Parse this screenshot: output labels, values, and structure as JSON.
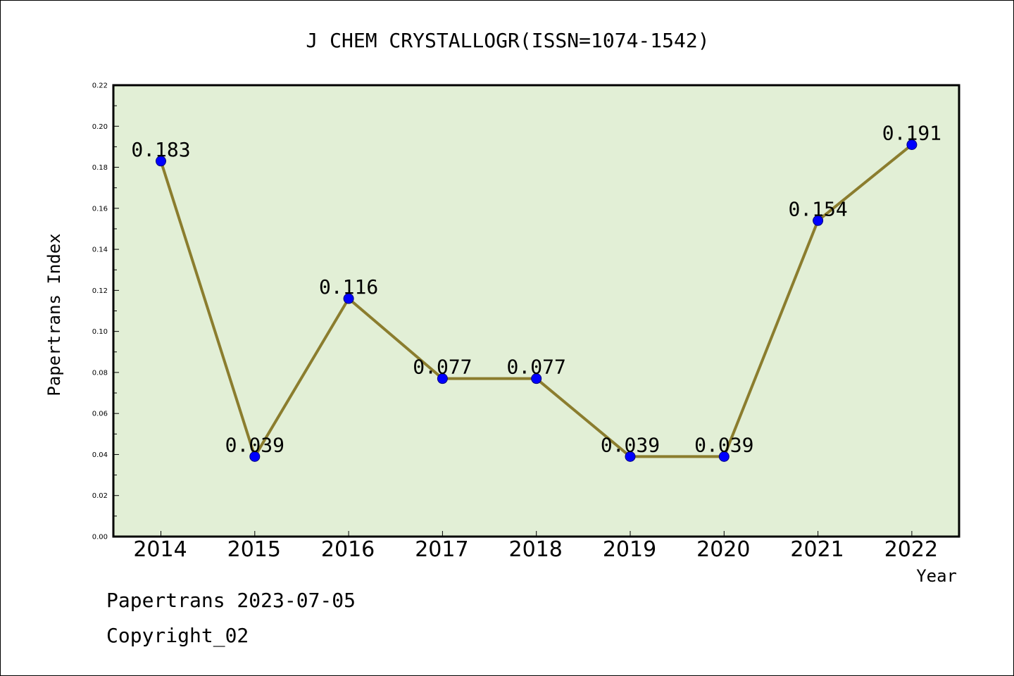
{
  "footer": {
    "line1": "Papertrans 2023-07-05",
    "line2": "Copyright_02"
  },
  "chart_data": {
    "type": "line",
    "title": "J CHEM CRYSTALLOGR(ISSN=1074-1542)",
    "xlabel": "Year",
    "ylabel": "Papertrans Index",
    "categories": [
      "2014",
      "2015",
      "2016",
      "2017",
      "2018",
      "2019",
      "2020",
      "2021",
      "2022"
    ],
    "series": [
      {
        "values": [
          0.183,
          0.039,
          0.116,
          0.077,
          0.077,
          0.039,
          0.039,
          0.154,
          0.191
        ]
      }
    ],
    "data_labels": [
      "0.183",
      "0.039",
      "0.116",
      "0.077",
      "0.077",
      "0.039",
      "0.039",
      "0.154",
      "0.191"
    ],
    "ylim": [
      0,
      0.22
    ],
    "yticks": [
      "0.00",
      "0.02",
      "0.04",
      "0.06",
      "0.08",
      "0.10",
      "0.12",
      "0.14",
      "0.16",
      "0.18",
      "0.20",
      "0.22"
    ],
    "colors": {
      "plot_background": "#e2efd6",
      "line": "#8b7d2e",
      "marker": "#0000ff"
    },
    "grid": false,
    "legend": "none"
  }
}
